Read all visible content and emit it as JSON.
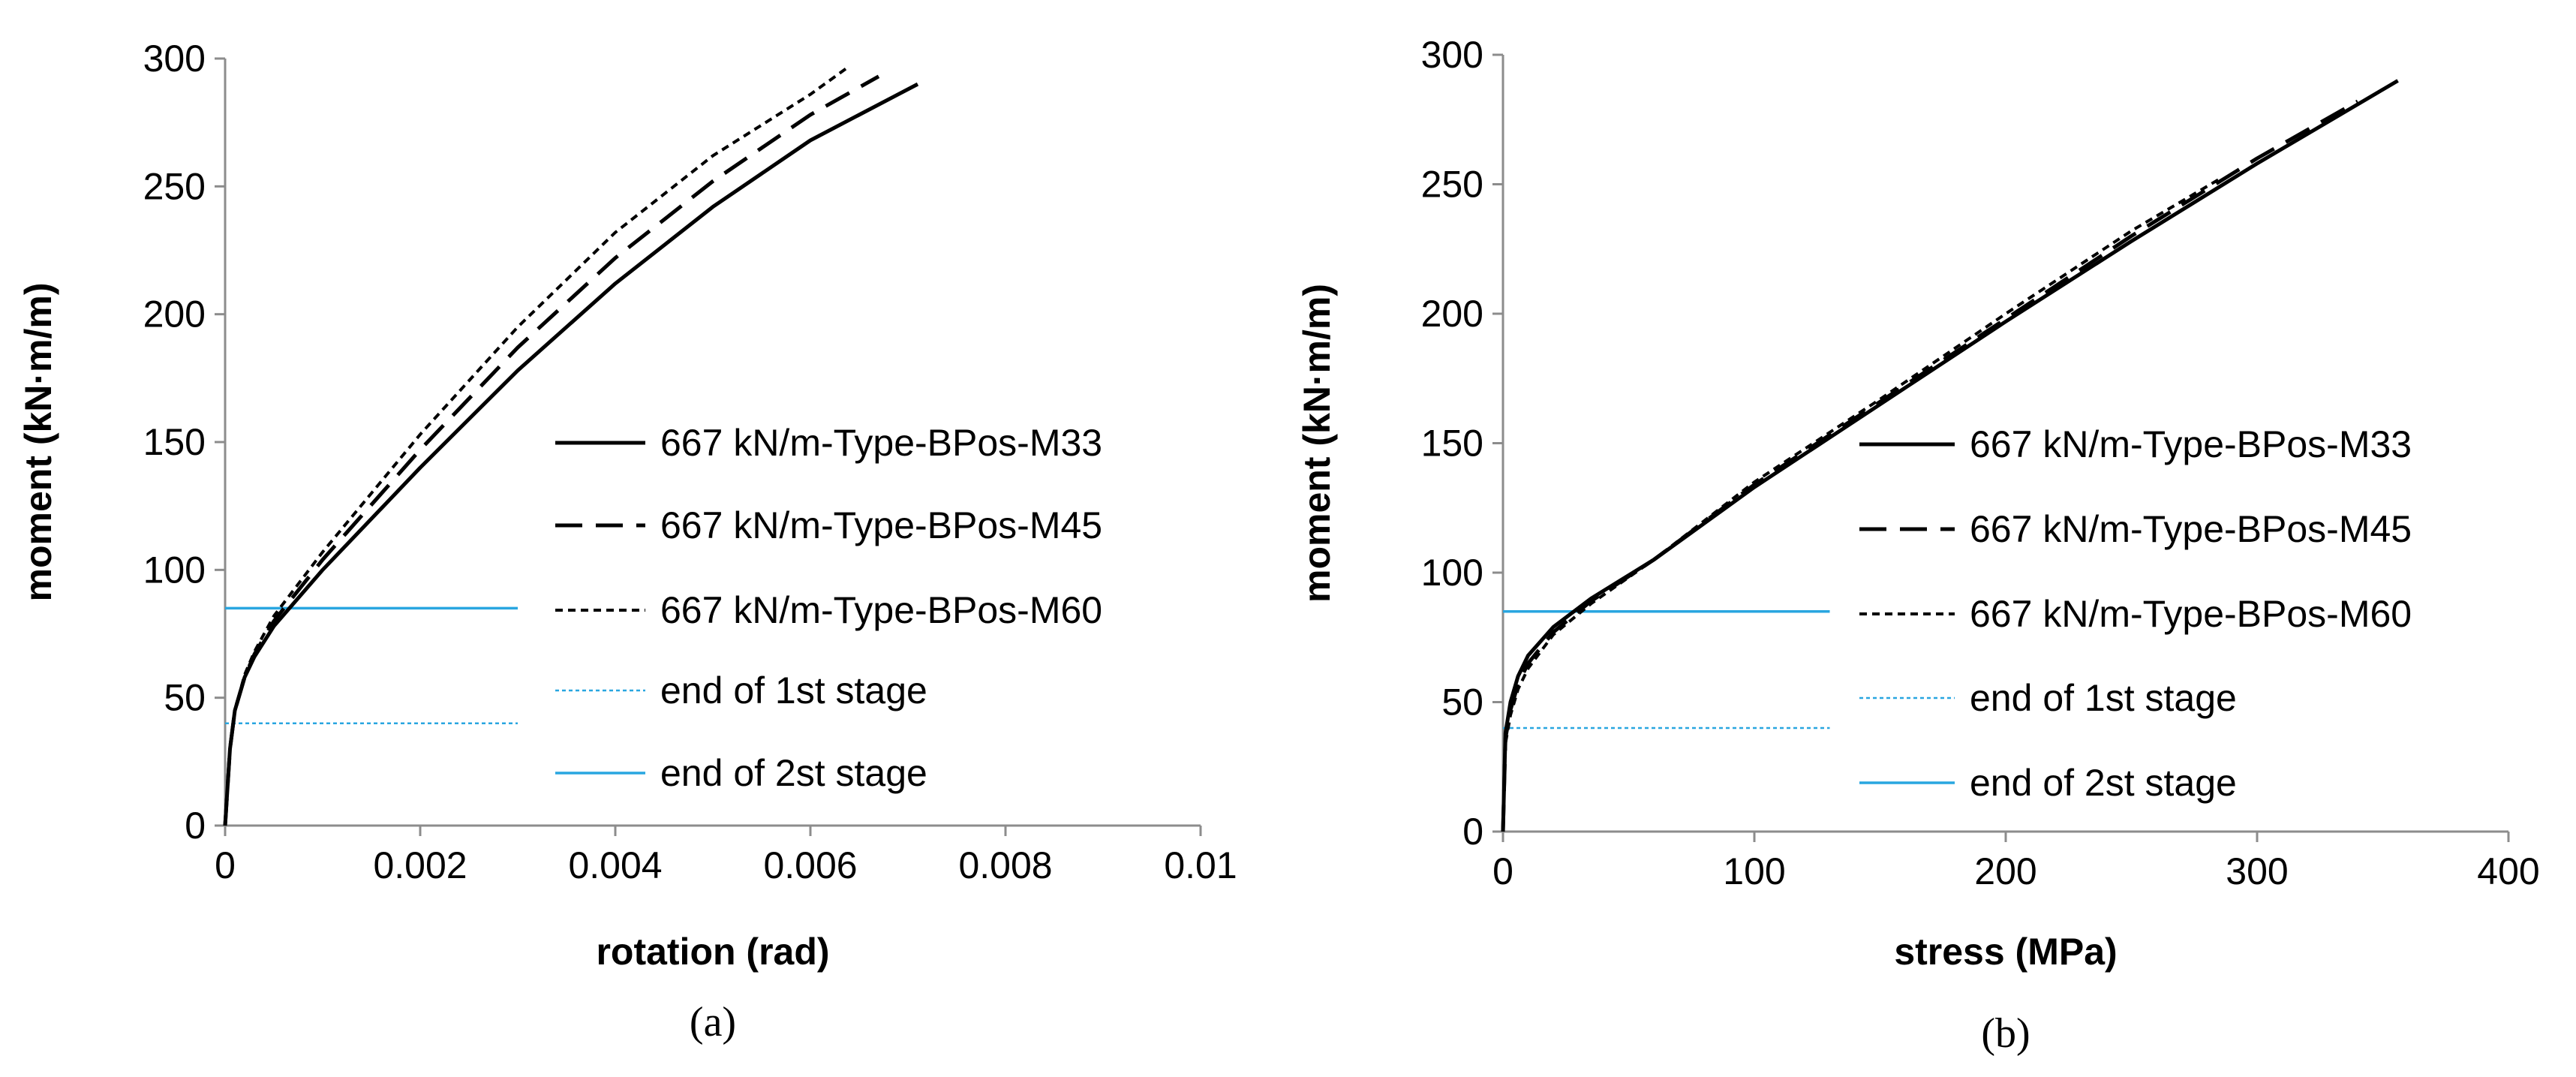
{
  "chart_data": [
    {
      "type": "line",
      "panel_label": "(a)",
      "xlabel": "rotation (rad)",
      "ylabel": "moment (kN·m/m)",
      "xlim": [
        0,
        0.01
      ],
      "ylim": [
        0,
        300
      ],
      "x_ticks": [
        0,
        0.002,
        0.004,
        0.006,
        0.008,
        0.01
      ],
      "x_tick_labels": [
        "0",
        "0.002",
        "0.004",
        "0.006",
        "0.008",
        "0.01"
      ],
      "y_ticks": [
        0,
        50,
        100,
        150,
        200,
        250,
        300
      ],
      "y_tick_labels": [
        "0",
        "50",
        "100",
        "150",
        "200",
        "250",
        "300"
      ],
      "legend_position": "right",
      "series": [
        {
          "name": "667 kN/m-Type-BPos-M33",
          "style": "solid",
          "color": "#000000",
          "x": [
            0,
            5e-05,
            0.0001,
            0.0002,
            0.0003,
            0.0005,
            0.001,
            0.002,
            0.003,
            0.004,
            0.005,
            0.006,
            0.0071
          ],
          "y": [
            0,
            30,
            45,
            58,
            66,
            78,
            100,
            140,
            178,
            212,
            242,
            268,
            290
          ]
        },
        {
          "name": "667 kN/m-Type-BPos-M45",
          "style": "dashed",
          "color": "#000000",
          "x": [
            0,
            5e-05,
            0.0001,
            0.0002,
            0.0003,
            0.0005,
            0.001,
            0.002,
            0.003,
            0.004,
            0.005,
            0.006,
            0.0067
          ],
          "y": [
            0,
            30,
            45,
            58,
            67,
            80,
            104,
            147,
            187,
            222,
            252,
            278,
            293
          ]
        },
        {
          "name": "667 kN/m-Type-BPos-M60",
          "style": "dotted",
          "color": "#000000",
          "x": [
            0,
            5e-05,
            0.0001,
            0.0002,
            0.0003,
            0.0005,
            0.001,
            0.002,
            0.003,
            0.004,
            0.005,
            0.006,
            0.0064
          ],
          "y": [
            0,
            30,
            45,
            59,
            68,
            82,
            107,
            153,
            195,
            232,
            262,
            286,
            297
          ]
        },
        {
          "name": "end of 1st stage",
          "style": "dotted-thin",
          "color": "#29a6e0",
          "x": [
            0,
            0.003
          ],
          "y": [
            40,
            40
          ]
        },
        {
          "name": "end of 2st stage",
          "style": "solid-thin",
          "color": "#29a6e0",
          "x": [
            0,
            0.003
          ],
          "y": [
            85,
            85
          ]
        }
      ]
    },
    {
      "type": "line",
      "panel_label": "(b)",
      "xlabel": "stress (MPa)",
      "ylabel": "moment (kN·m/m)",
      "xlim": [
        0,
        400
      ],
      "ylim": [
        0,
        300
      ],
      "x_ticks": [
        0,
        100,
        200,
        300,
        400
      ],
      "x_tick_labels": [
        "0",
        "100",
        "200",
        "300",
        "400"
      ],
      "y_ticks": [
        0,
        50,
        100,
        150,
        200,
        250,
        300
      ],
      "y_tick_labels": [
        "0",
        "50",
        "100",
        "150",
        "200",
        "250",
        "300"
      ],
      "legend_position": "right",
      "series": [
        {
          "name": "667 kN/m-Type-BPos-M33",
          "style": "solid",
          "color": "#000000",
          "x": [
            0,
            1,
            3,
            6,
            10,
            20,
            35,
            60,
            100,
            150,
            200,
            250,
            300,
            356
          ],
          "y": [
            0,
            38,
            50,
            60,
            68,
            79,
            90,
            105,
            133,
            165,
            197,
            228,
            258,
            290
          ]
        },
        {
          "name": "667 kN/m-Type-BPos-M45",
          "style": "dashed",
          "color": "#000000",
          "x": [
            0,
            1,
            3,
            6,
            10,
            20,
            35,
            60,
            100,
            150,
            200,
            250,
            300,
            340
          ],
          "y": [
            0,
            36,
            47,
            57,
            65,
            77,
            89,
            105,
            134,
            166,
            198,
            230,
            260,
            282
          ]
        },
        {
          "name": "667 kN/m-Type-BPos-M60",
          "style": "dotted",
          "color": "#000000",
          "x": [
            0,
            1,
            3,
            6,
            10,
            20,
            35,
            60,
            100,
            150,
            200,
            250,
            285
          ],
          "y": [
            0,
            34,
            45,
            55,
            63,
            76,
            88,
            105,
            135,
            167,
            200,
            232,
            252
          ]
        },
        {
          "name": "end of 1st stage",
          "style": "dotted-thin",
          "color": "#29a6e0",
          "x": [
            0,
            130
          ],
          "y": [
            40,
            40
          ]
        },
        {
          "name": "end of 2st stage",
          "style": "solid-thin",
          "color": "#29a6e0",
          "x": [
            0,
            130
          ],
          "y": [
            85,
            85
          ]
        }
      ]
    }
  ]
}
